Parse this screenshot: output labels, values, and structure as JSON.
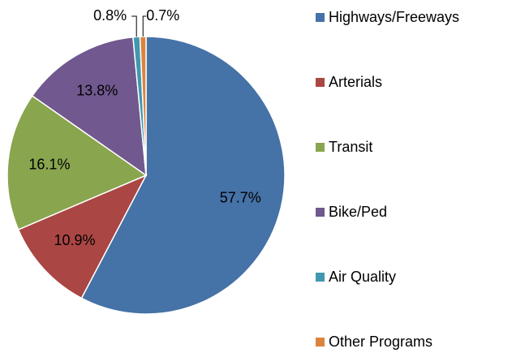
{
  "chart_data": {
    "type": "pie",
    "categories": [
      "Highways/Freeways",
      "Arterials",
      "Transit",
      "Bike/Ped",
      "Air Quality",
      "Other Programs"
    ],
    "values": [
      57.7,
      10.9,
      16.1,
      13.8,
      0.8,
      0.7
    ],
    "value_labels": [
      "57.7%",
      "10.9%",
      "16.1%",
      "13.8%",
      "0.8%",
      "0.7%"
    ],
    "colors": [
      "#4572a7",
      "#aa4643",
      "#89a54e",
      "#71588f",
      "#4198af",
      "#db843d"
    ],
    "legend": "right"
  }
}
